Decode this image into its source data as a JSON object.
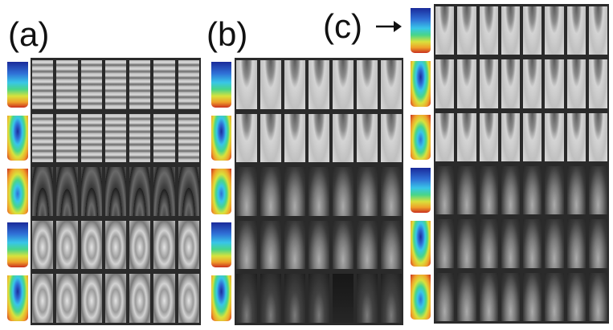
{
  "labels": {
    "a": "(a)",
    "b": "(b)",
    "c": "(c)"
  },
  "arrow_icon": "right-arrow-icon",
  "panels": {
    "a": {
      "rows": 5,
      "cols": 7,
      "row_style": [
        "stripes",
        "stripes",
        "fringes",
        "waves",
        "waves"
      ]
    },
    "b": {
      "rows": 5,
      "cols": 7,
      "row_style": [
        "arcs",
        "arcs",
        "dim",
        "dim",
        "dark"
      ]
    },
    "c": {
      "rows": 6,
      "cols": 8,
      "row_style": [
        "arcs",
        "arcs",
        "arcs",
        "dim",
        "dim",
        "dim"
      ]
    }
  },
  "colormap": [
    "#1a2a9a",
    "#2f6fd6",
    "#38c6e8",
    "#48d58a",
    "#d9e23c",
    "#f0a12a",
    "#c9301f"
  ]
}
